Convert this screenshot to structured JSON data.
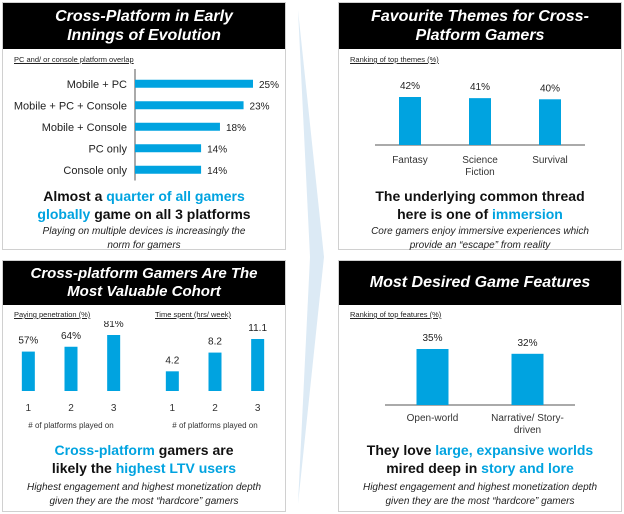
{
  "colors": {
    "accent": "#00a3e0",
    "header_bg": "#000000"
  },
  "panels": {
    "evolution": {
      "title_line1": "Cross-Platform in Early",
      "title_line2": "Innings of Evolution",
      "chart_label": "PC and/ or console platform overlap",
      "headline_pre": "Almost a ",
      "headline_hl": "quarter of all gamers globally",
      "headline_post": " game on all 3 platforms",
      "note": "Playing on multiple devices is increasingly the norm for gamers"
    },
    "themes": {
      "title_line1": "Favourite Themes for Cross-",
      "title_line2": "Platform Gamers",
      "chart_label": "Ranking of top themes (%)",
      "headline_pre": "The underlying common thread here is one of ",
      "headline_hl": "immersion",
      "note": "Core gamers enjoy immersive experiences which provide an “escape” from reality"
    },
    "valuable": {
      "title_line1": "Cross-platform Gamers Are The",
      "title_line2": "Most Valuable Cohort",
      "chart1_label": "Paying penetration (%)",
      "chart2_label": "Time spent (hrs/ week)",
      "axis_caption": "# of platforms played on",
      "headline_hl1": "Cross-platform",
      "headline_mid": " gamers are likely the ",
      "headline_hl2": "highest LTV users",
      "note": "Highest engagement and highest monetization depth given they are the most “hardcore” gamers"
    },
    "features": {
      "title": "Most Desired Game Features",
      "chart_label": "Ranking of top features (%)",
      "headline_pre": "They love ",
      "headline_hl1": "large, expansive worlds",
      "headline_mid": " mired deep in ",
      "headline_hl2": "story and lore",
      "note": "Highest engagement and highest monetization depth given they are the most “hardcore” gamers"
    }
  },
  "chart_data": [
    {
      "id": "overlap",
      "type": "bar",
      "orientation": "horizontal",
      "categories": [
        "Mobile + PC",
        "Mobile + PC + Console",
        "Mobile + Console",
        "PC only",
        "Console only"
      ],
      "values": [
        25,
        23,
        18,
        14,
        14
      ],
      "labels": [
        "25%",
        "23%",
        "18%",
        "14%",
        "14%"
      ],
      "color": "#00a3e0"
    },
    {
      "id": "themes",
      "type": "bar",
      "categories": [
        "Fantasy",
        "Science Fiction",
        "Survival"
      ],
      "values": [
        42,
        41,
        40
      ],
      "labels": [
        "42%",
        "41%",
        "40%"
      ],
      "color": "#00a3e0"
    },
    {
      "id": "paying",
      "type": "bar",
      "categories": [
        "1",
        "2",
        "3"
      ],
      "values": [
        57,
        64,
        81
      ],
      "labels": [
        "57%",
        "64%",
        "81%"
      ],
      "color": "#00a3e0"
    },
    {
      "id": "time",
      "type": "bar",
      "categories": [
        "1",
        "2",
        "3"
      ],
      "values": [
        4.2,
        8.2,
        11.1
      ],
      "labels": [
        "4.2",
        "8.2",
        "11.1"
      ],
      "color": "#00a3e0"
    },
    {
      "id": "features",
      "type": "bar",
      "categories": [
        "Open-world",
        "Narrative/ Story-driven"
      ],
      "values": [
        35,
        32
      ],
      "labels": [
        "35%",
        "32%"
      ],
      "color": "#00a3e0"
    }
  ]
}
